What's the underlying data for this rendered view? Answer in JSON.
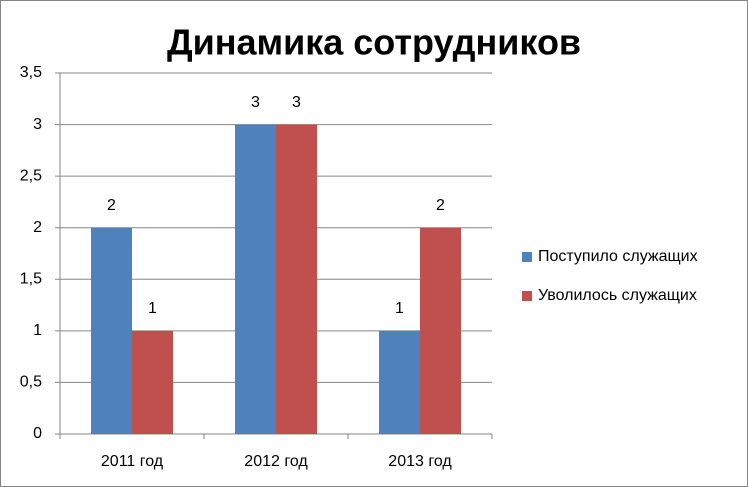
{
  "chart_data": {
    "type": "bar",
    "title": "Динамика сотрудников",
    "categories": [
      "2011 год",
      "2012 год",
      "2013 год"
    ],
    "series": [
      {
        "name": "Поступило служащих",
        "color": "#4f81bd",
        "values": [
          2,
          3,
          1
        ]
      },
      {
        "name": "Уволилось служащих",
        "color": "#c0504d",
        "values": [
          1,
          3,
          2
        ]
      }
    ],
    "ylim": [
      0,
      3.5
    ],
    "yticks": [
      0,
      {
        "value": 0.5,
        "label": "0,5"
      },
      1,
      {
        "value": 1.5,
        "label": "1,5"
      },
      2,
      {
        "value": 2.5,
        "label": "2,5"
      },
      3,
      {
        "value": 3.5,
        "label": "3,5"
      }
    ],
    "grid": true,
    "legend": "right"
  }
}
